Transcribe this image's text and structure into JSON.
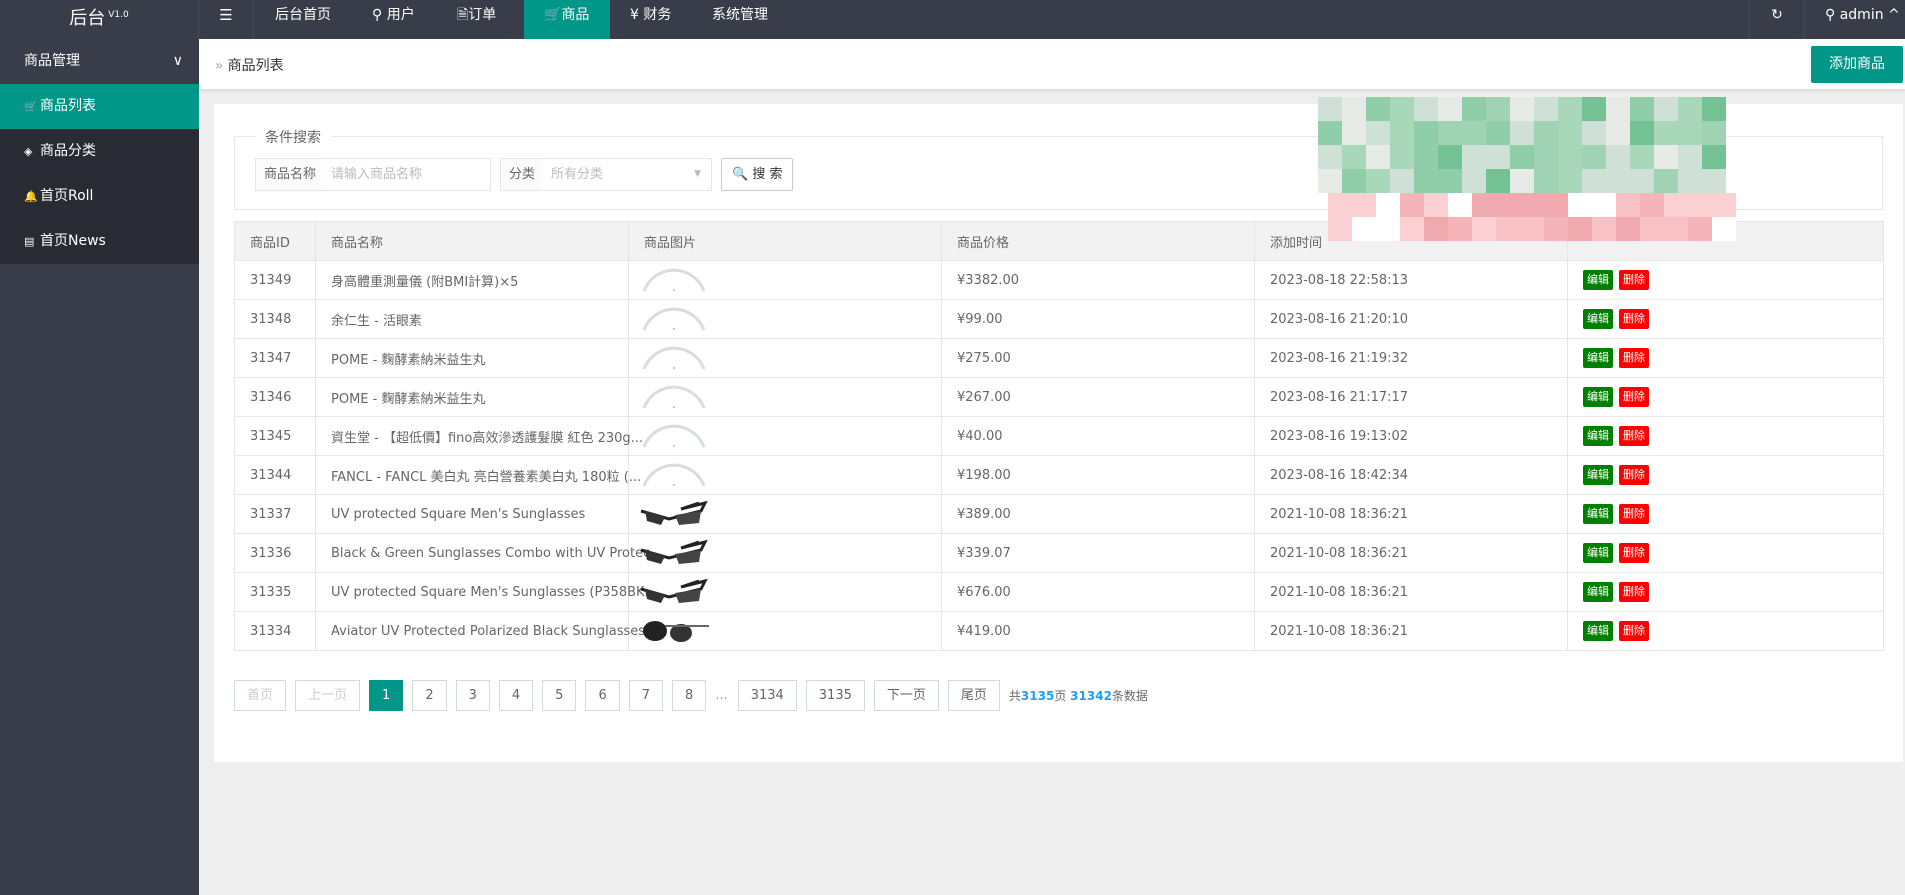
{
  "topbar": {
    "logo": "后台",
    "version": "V1.0",
    "nav": [
      {
        "label": "后台首页",
        "icon": ""
      },
      {
        "label": "用户",
        "icon": "user-icon"
      },
      {
        "label": "订单",
        "icon": "document-icon"
      },
      {
        "label": "商品",
        "icon": "cart-icon",
        "active": true
      },
      {
        "label": "财务",
        "icon": "yen-icon"
      },
      {
        "label": "系统管理",
        "icon": ""
      }
    ],
    "user": "admin"
  },
  "sidebar": {
    "group": "商品管理",
    "items": [
      {
        "label": "商品列表",
        "icon": "cart-icon",
        "active": true
      },
      {
        "label": "商品分类",
        "icon": "layers-icon"
      },
      {
        "label": "首页Roll",
        "icon": "bell-icon"
      },
      {
        "label": "首页News",
        "icon": "news-icon"
      }
    ]
  },
  "breadcrumb": {
    "current": "商品列表"
  },
  "add_button": "添加商品",
  "search": {
    "legend": "条件搜索",
    "name_label": "商品名称",
    "name_placeholder": "请输入商品名称",
    "cat_label": "分类",
    "cat_value": "所有分类",
    "button": "搜 索"
  },
  "table": {
    "headers": [
      "商品ID",
      "商品名称",
      "商品图片",
      "商品价格",
      "添加时间",
      ""
    ],
    "edit_label": "编辑",
    "delete_label": "删除",
    "rows": [
      {
        "id": "31349",
        "name": "身高體重測量儀 (附BMI計算)×5",
        "image": "placeholder",
        "price": "¥3382.00",
        "time": "2023-08-18 22:58:13"
      },
      {
        "id": "31348",
        "name": "余仁生 - 活眼素",
        "image": "placeholder",
        "price": "¥99.00",
        "time": "2023-08-16 21:20:10"
      },
      {
        "id": "31347",
        "name": "POME - 麴酵素納米益生丸",
        "image": "placeholder",
        "price": "¥275.00",
        "time": "2023-08-16 21:19:32"
      },
      {
        "id": "31346",
        "name": "POME - 麴酵素納米益生丸",
        "image": "placeholder",
        "price": "¥267.00",
        "time": "2023-08-16 21:17:17"
      },
      {
        "id": "31345",
        "name": "資生堂 - 【超低價】fino高效滲透護髮膜 紅色 230g...",
        "image": "placeholder",
        "price": "¥40.00",
        "time": "2023-08-16 19:13:02"
      },
      {
        "id": "31344",
        "name": "FANCL - FANCL 美白丸 亮白營養素美白丸 180粒 (...",
        "image": "placeholder",
        "price": "¥198.00",
        "time": "2023-08-16 18:42:34"
      },
      {
        "id": "31337",
        "name": "UV protected Square Men's Sunglasses",
        "image": "sunglasses",
        "price": "¥389.00",
        "time": "2021-10-08 18:36:21"
      },
      {
        "id": "31336",
        "name": "Black & Green Sunglasses Combo with UV Protec...",
        "image": "sunglasses",
        "price": "¥339.07",
        "time": "2021-10-08 18:36:21"
      },
      {
        "id": "31335",
        "name": "UV protected Square Men's Sunglasses (P358BK...",
        "image": "sunglasses",
        "price": "¥676.00",
        "time": "2021-10-08 18:36:21"
      },
      {
        "id": "31334",
        "name": "Aviator UV Protected Polarized Black Sunglasses ...",
        "image": "aviator",
        "price": "¥419.00",
        "time": "2021-10-08 18:36:21"
      }
    ]
  },
  "pager": {
    "first": "首页",
    "prev": "上一页",
    "pages": [
      "1",
      "2",
      "3",
      "4",
      "5",
      "6",
      "7",
      "8"
    ],
    "ellipsis": "...",
    "tail": [
      "3134",
      "3135"
    ],
    "next": "下一页",
    "last": "尾页",
    "current": "1",
    "sum_prefix": "共",
    "total_pages": "3135",
    "sum_mid": "页",
    "total_items": "31342",
    "sum_suffix": "条数据"
  },
  "colors": {
    "topbar": "#393D49",
    "accent": "#009688",
    "edit": "#008000",
    "delete": "#ff0000",
    "link": "#1E9FFF"
  }
}
